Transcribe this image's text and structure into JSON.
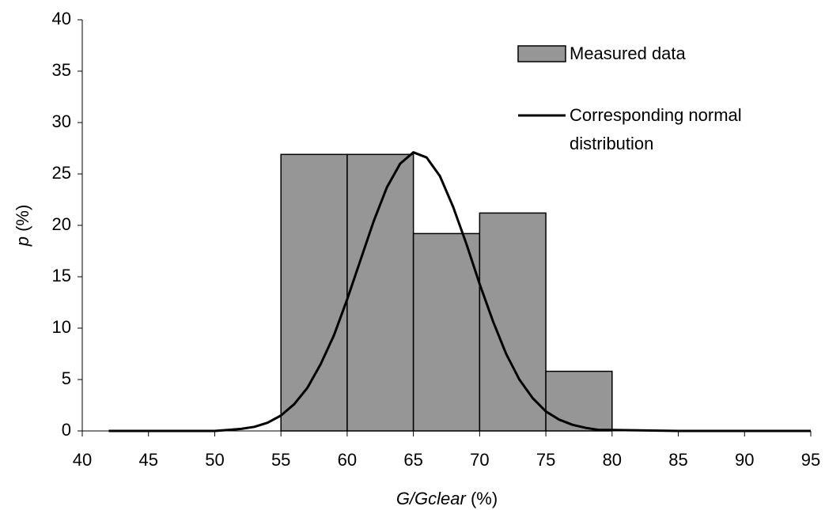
{
  "chart_data": {
    "type": "histogram",
    "bins": [
      55,
      60,
      65,
      70,
      75,
      80
    ],
    "series": [
      {
        "name": "Measured data",
        "type": "histogram",
        "color": "#969696",
        "values": [
          26.9,
          26.9,
          19.2,
          21.2,
          5.8
        ]
      },
      {
        "name": "Corresponding normal distribution",
        "type": "line",
        "color": "#000000",
        "x": [
          42,
          50,
          51,
          52,
          53,
          54,
          55,
          56,
          57,
          58,
          59,
          60,
          61,
          62,
          63,
          64,
          65,
          66,
          67,
          68,
          69,
          70,
          71,
          72,
          73,
          74,
          75,
          76,
          77,
          78,
          79,
          80,
          85,
          90,
          95
        ],
        "values": [
          0,
          0,
          0.1,
          0.2,
          0.4,
          0.8,
          1.5,
          2.6,
          4.2,
          6.5,
          9.3,
          12.8,
          16.6,
          20.4,
          23.7,
          26.0,
          27.1,
          26.6,
          24.8,
          21.8,
          18.2,
          14.3,
          10.7,
          7.5,
          5.0,
          3.2,
          1.9,
          1.1,
          0.6,
          0.3,
          0.1,
          0.1,
          0,
          0,
          0
        ]
      }
    ],
    "xlabel": [
      "G/Gclear",
      "(%)"
    ],
    "ylabel": [
      "p",
      "(%)"
    ],
    "xlim": [
      40,
      95
    ],
    "ylim": [
      0,
      40
    ],
    "xticks": [
      40,
      45,
      50,
      55,
      60,
      65,
      70,
      75,
      80,
      85,
      90,
      95
    ],
    "yticks": [
      0,
      5,
      10,
      15,
      20,
      25,
      30,
      35,
      40
    ],
    "grid": false,
    "legend": "upper right"
  }
}
